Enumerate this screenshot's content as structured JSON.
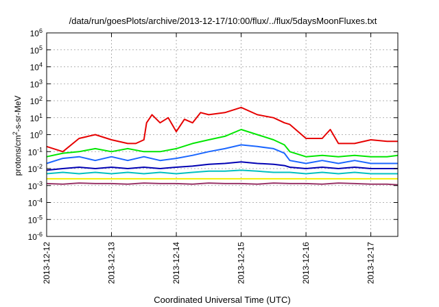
{
  "chart_data": {
    "type": "line",
    "title": "/data/run/goesPlots/archive/2013-12-17/10:00/flux/../flux/5daysMoonFluxes.txt",
    "xlabel": "Coordinated Universal Time (UTC)",
    "ylabel_base": "protons/cm",
    "ylabel_sup": "2",
    "ylabel_rest": "-s-sr-MeV",
    "y_scale": "log",
    "ylim": [
      1e-06,
      1000000.0
    ],
    "y_ticks": [
      {
        "base": "10",
        "exp": "-6",
        "value": 1e-06
      },
      {
        "base": "10",
        "exp": "-5",
        "value": 1e-05
      },
      {
        "base": "10",
        "exp": "-4",
        "value": 0.0001
      },
      {
        "base": "10",
        "exp": "-3",
        "value": 0.001
      },
      {
        "base": "10",
        "exp": "-2",
        "value": 0.01
      },
      {
        "base": "10",
        "exp": "-1",
        "value": 0.1
      },
      {
        "base": "10",
        "exp": "0",
        "value": 1.0
      },
      {
        "base": "10",
        "exp": "1",
        "value": 10.0
      },
      {
        "base": "10",
        "exp": "2",
        "value": 100.0
      },
      {
        "base": "10",
        "exp": "3",
        "value": 1000.0
      },
      {
        "base": "10",
        "exp": "4",
        "value": 10000.0
      },
      {
        "base": "10",
        "exp": "5",
        "value": 100000.0
      },
      {
        "base": "10",
        "exp": "6",
        "value": 1000000.0
      }
    ],
    "xlim": [
      "2013-12-12T00:00",
      "2013-12-17T10:00"
    ],
    "x_ticks": [
      "2013-12-12",
      "2013-12-13",
      "2013-12-14",
      "2013-12-15",
      "2013-12-16",
      "2013-12-17"
    ],
    "grid": true,
    "series": [
      {
        "color": "#e60000",
        "x": [
          "2013-12-12T00:00",
          "2013-12-12T06:00",
          "2013-12-12T12:00",
          "2013-12-12T18:00",
          "2013-12-13T00:00",
          "2013-12-13T06:00",
          "2013-12-13T09:00",
          "2013-12-13T12:00",
          "2013-12-13T13:00",
          "2013-12-13T15:00",
          "2013-12-13T18:00",
          "2013-12-13T21:00",
          "2013-12-14T00:00",
          "2013-12-14T03:00",
          "2013-12-14T06:00",
          "2013-12-14T09:00",
          "2013-12-14T12:00",
          "2013-12-14T18:00",
          "2013-12-15T00:00",
          "2013-12-15T06:00",
          "2013-12-15T12:00",
          "2013-12-15T16:00",
          "2013-12-15T18:00",
          "2013-12-16T00:00",
          "2013-12-16T06:00",
          "2013-12-16T09:00",
          "2013-12-16T12:00",
          "2013-12-16T18:00",
          "2013-12-17T00:00",
          "2013-12-17T06:00",
          "2013-12-17T10:00"
        ],
        "values": [
          0.2,
          0.1,
          0.6,
          1.0,
          0.5,
          0.3,
          0.3,
          0.5,
          5,
          15,
          5,
          10,
          1.5,
          8,
          5,
          20,
          15,
          20,
          40,
          15,
          10,
          5,
          4,
          0.6,
          0.6,
          2,
          0.3,
          0.3,
          0.5,
          0.4,
          0.4
        ]
      },
      {
        "color": "#00e600",
        "x": [
          "2013-12-12T00:00",
          "2013-12-12T06:00",
          "2013-12-12T12:00",
          "2013-12-12T18:00",
          "2013-12-13T00:00",
          "2013-12-13T06:00",
          "2013-12-13T12:00",
          "2013-12-13T18:00",
          "2013-12-14T00:00",
          "2013-12-14T06:00",
          "2013-12-14T12:00",
          "2013-12-14T18:00",
          "2013-12-15T00:00",
          "2013-12-15T06:00",
          "2013-12-15T12:00",
          "2013-12-15T16:00",
          "2013-12-15T18:00",
          "2013-12-16T00:00",
          "2013-12-16T06:00",
          "2013-12-16T12:00",
          "2013-12-16T18:00",
          "2013-12-17T00:00",
          "2013-12-17T06:00",
          "2013-12-17T10:00"
        ],
        "values": [
          0.05,
          0.08,
          0.1,
          0.15,
          0.1,
          0.15,
          0.1,
          0.1,
          0.15,
          0.3,
          0.5,
          0.8,
          2,
          1,
          0.5,
          0.25,
          0.1,
          0.05,
          0.06,
          0.05,
          0.06,
          0.05,
          0.05,
          0.06
        ]
      },
      {
        "color": "#1a66ff",
        "x": [
          "2013-12-12T00:00",
          "2013-12-12T06:00",
          "2013-12-12T12:00",
          "2013-12-12T18:00",
          "2013-12-13T00:00",
          "2013-12-13T06:00",
          "2013-12-13T12:00",
          "2013-12-13T18:00",
          "2013-12-14T00:00",
          "2013-12-14T06:00",
          "2013-12-14T12:00",
          "2013-12-14T18:00",
          "2013-12-15T00:00",
          "2013-12-15T06:00",
          "2013-12-15T12:00",
          "2013-12-15T16:00",
          "2013-12-15T18:00",
          "2013-12-16T00:00",
          "2013-12-16T06:00",
          "2013-12-16T12:00",
          "2013-12-16T18:00",
          "2013-12-17T00:00",
          "2013-12-17T06:00",
          "2013-12-17T10:00"
        ],
        "values": [
          0.02,
          0.04,
          0.05,
          0.03,
          0.05,
          0.03,
          0.05,
          0.03,
          0.04,
          0.06,
          0.1,
          0.15,
          0.25,
          0.2,
          0.15,
          0.08,
          0.03,
          0.02,
          0.03,
          0.02,
          0.03,
          0.02,
          0.02,
          0.02
        ]
      },
      {
        "color": "#0000b3",
        "x": [
          "2013-12-12T00:00",
          "2013-12-12T06:00",
          "2013-12-12T12:00",
          "2013-12-12T18:00",
          "2013-12-13T00:00",
          "2013-12-13T06:00",
          "2013-12-13T12:00",
          "2013-12-13T18:00",
          "2013-12-14T00:00",
          "2013-12-14T06:00",
          "2013-12-14T12:00",
          "2013-12-14T18:00",
          "2013-12-15T00:00",
          "2013-12-15T06:00",
          "2013-12-15T12:00",
          "2013-12-15T16:00",
          "2013-12-15T18:00",
          "2013-12-16T00:00",
          "2013-12-16T06:00",
          "2013-12-16T12:00",
          "2013-12-16T18:00",
          "2013-12-17T00:00",
          "2013-12-17T06:00",
          "2013-12-17T10:00"
        ],
        "values": [
          0.008,
          0.01,
          0.012,
          0.01,
          0.012,
          0.01,
          0.012,
          0.01,
          0.012,
          0.014,
          0.018,
          0.02,
          0.025,
          0.02,
          0.018,
          0.015,
          0.012,
          0.01,
          0.012,
          0.01,
          0.012,
          0.01,
          0.01,
          0.01
        ]
      },
      {
        "color": "#00c0c0",
        "x": [
          "2013-12-12T00:00",
          "2013-12-12T06:00",
          "2013-12-12T12:00",
          "2013-12-12T18:00",
          "2013-12-13T00:00",
          "2013-12-13T06:00",
          "2013-12-13T12:00",
          "2013-12-13T18:00",
          "2013-12-14T00:00",
          "2013-12-14T06:00",
          "2013-12-14T12:00",
          "2013-12-14T18:00",
          "2013-12-15T00:00",
          "2013-12-15T06:00",
          "2013-12-15T12:00",
          "2013-12-15T18:00",
          "2013-12-16T00:00",
          "2013-12-16T06:00",
          "2013-12-16T12:00",
          "2013-12-16T18:00",
          "2013-12-17T00:00",
          "2013-12-17T06:00",
          "2013-12-17T10:00"
        ],
        "values": [
          0.005,
          0.006,
          0.005,
          0.006,
          0.005,
          0.006,
          0.005,
          0.006,
          0.005,
          0.006,
          0.007,
          0.007,
          0.008,
          0.007,
          0.006,
          0.006,
          0.005,
          0.006,
          0.005,
          0.006,
          0.005,
          0.005,
          0.005
        ]
      },
      {
        "color": "#f0f000",
        "x": [
          "2013-12-12T00:00",
          "2013-12-13T00:00",
          "2013-12-14T00:00",
          "2013-12-15T00:00",
          "2013-12-16T00:00",
          "2013-12-17T00:00",
          "2013-12-17T10:00"
        ],
        "values": [
          0.0025,
          0.0025,
          0.0025,
          0.0025,
          0.0025,
          0.0025,
          0.0025
        ]
      },
      {
        "color": "#993366",
        "x": [
          "2013-12-12T00:00",
          "2013-12-12T06:00",
          "2013-12-12T12:00",
          "2013-12-12T18:00",
          "2013-12-13T00:00",
          "2013-12-13T06:00",
          "2013-12-13T12:00",
          "2013-12-13T18:00",
          "2013-12-14T00:00",
          "2013-12-14T06:00",
          "2013-12-14T12:00",
          "2013-12-14T18:00",
          "2013-12-15T00:00",
          "2013-12-15T06:00",
          "2013-12-15T12:00",
          "2013-12-15T18:00",
          "2013-12-16T00:00",
          "2013-12-16T06:00",
          "2013-12-16T12:00",
          "2013-12-16T18:00",
          "2013-12-17T00:00",
          "2013-12-17T06:00",
          "2013-12-17T10:00"
        ],
        "values": [
          0.0013,
          0.0012,
          0.0014,
          0.0013,
          0.0013,
          0.0012,
          0.0014,
          0.0013,
          0.0013,
          0.0012,
          0.0014,
          0.0013,
          0.0013,
          0.0012,
          0.0014,
          0.0013,
          0.0013,
          0.0012,
          0.0014,
          0.0013,
          0.0012,
          0.0012,
          0.0011
        ]
      }
    ]
  }
}
